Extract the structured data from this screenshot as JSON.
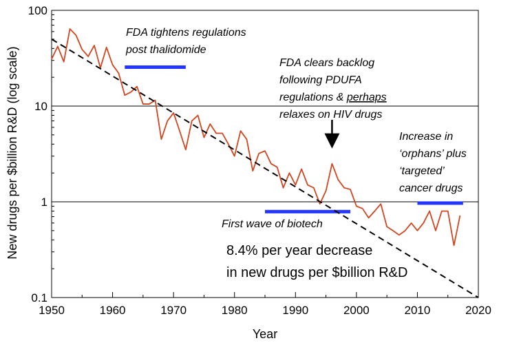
{
  "chart_data": {
    "type": "line",
    "title": "",
    "xlabel": "Year",
    "ylabel": "New drugs per $billion R&D (log scale)",
    "xlim": [
      1950,
      2020
    ],
    "ylim": [
      0.1,
      100
    ],
    "y_scale": "log",
    "x_ticks": [
      "1950",
      "1960",
      "1970",
      "1980",
      "1990",
      "2000",
      "2010",
      "2020"
    ],
    "y_ticks": [
      "0.1",
      "1",
      "10",
      "100"
    ],
    "gridlines_y": [
      1,
      10
    ],
    "series": [
      {
        "color": "#d2451e",
        "x": [
          1950,
          1951,
          1952,
          1953,
          1954,
          1955,
          1956,
          1957,
          1958,
          1959,
          1960,
          1961,
          1962,
          1963,
          1964,
          1965,
          1966,
          1967,
          1968,
          1969,
          1970,
          1971,
          1972,
          1973,
          1974,
          1975,
          1976,
          1977,
          1978,
          1979,
          1980,
          1981,
          1982,
          1983,
          1984,
          1985,
          1986,
          1987,
          1988,
          1989,
          1990,
          1991,
          1992,
          1993,
          1994,
          1995,
          1996,
          1997,
          1998,
          1999,
          2000,
          2001,
          2002,
          2003,
          2004,
          2005,
          2006,
          2007,
          2008,
          2009,
          2010,
          2011,
          2012,
          2013,
          2014,
          2015,
          2016,
          2017
        ],
        "y": [
          31,
          42,
          29,
          64,
          55,
          39,
          33,
          43,
          25,
          41,
          27,
          22,
          13,
          14,
          16,
          10.5,
          10.5,
          11.5,
          4.5,
          7,
          8.5,
          5.5,
          3.5,
          7,
          8,
          4.7,
          6.5,
          5.2,
          5.2,
          4,
          3,
          5.5,
          4.5,
          2.1,
          3.2,
          3.4,
          2.5,
          2.3,
          1.4,
          2,
          1.5,
          2.2,
          1.5,
          1.4,
          0.95,
          1.3,
          2.5,
          1.7,
          1.4,
          1.35,
          0.9,
          0.85,
          0.68,
          0.8,
          0.95,
          0.55,
          0.5,
          0.45,
          0.5,
          0.6,
          0.5,
          0.6,
          0.8,
          0.5,
          0.8,
          0.8,
          0.35,
          0.72
        ]
      },
      {
        "kind": "trend",
        "color": "#000000",
        "x": [
          1950,
          2020
        ],
        "y": [
          50,
          0.1
        ]
      }
    ],
    "highlight_bars": [
      {
        "x": [
          1962,
          1972
        ],
        "y": 25.5,
        "color": "#2236ff"
      },
      {
        "x": [
          1985,
          1999
        ],
        "y": 0.79,
        "color": "#2236ff"
      },
      {
        "x": [
          2010,
          2017.5
        ],
        "y": 0.97,
        "color": "#2236ff"
      }
    ],
    "arrow": {
      "x": 1996,
      "y_from": 7.2,
      "y_to": 3.6
    },
    "annotations": [
      {
        "lines": [
          "FDA tightens regulations",
          "post thalidomide"
        ],
        "style": "italic"
      },
      {
        "lines": [
          "FDA clears backlog",
          "following PDUFA",
          "regulations & ",
          "relaxes on HIV drugs"
        ],
        "underlined": "perhaps",
        "style": "italic"
      },
      {
        "lines": [
          "Increase in",
          "‘orphans’ plus",
          "‘targeted’",
          "cancer drugs"
        ],
        "style": "italic"
      },
      {
        "lines": [
          "First wave of biotech"
        ],
        "style": "italic"
      },
      {
        "lines": [
          "8.4% per year decrease",
          "in new drugs per $billion R&D"
        ],
        "style": "normal"
      }
    ]
  }
}
